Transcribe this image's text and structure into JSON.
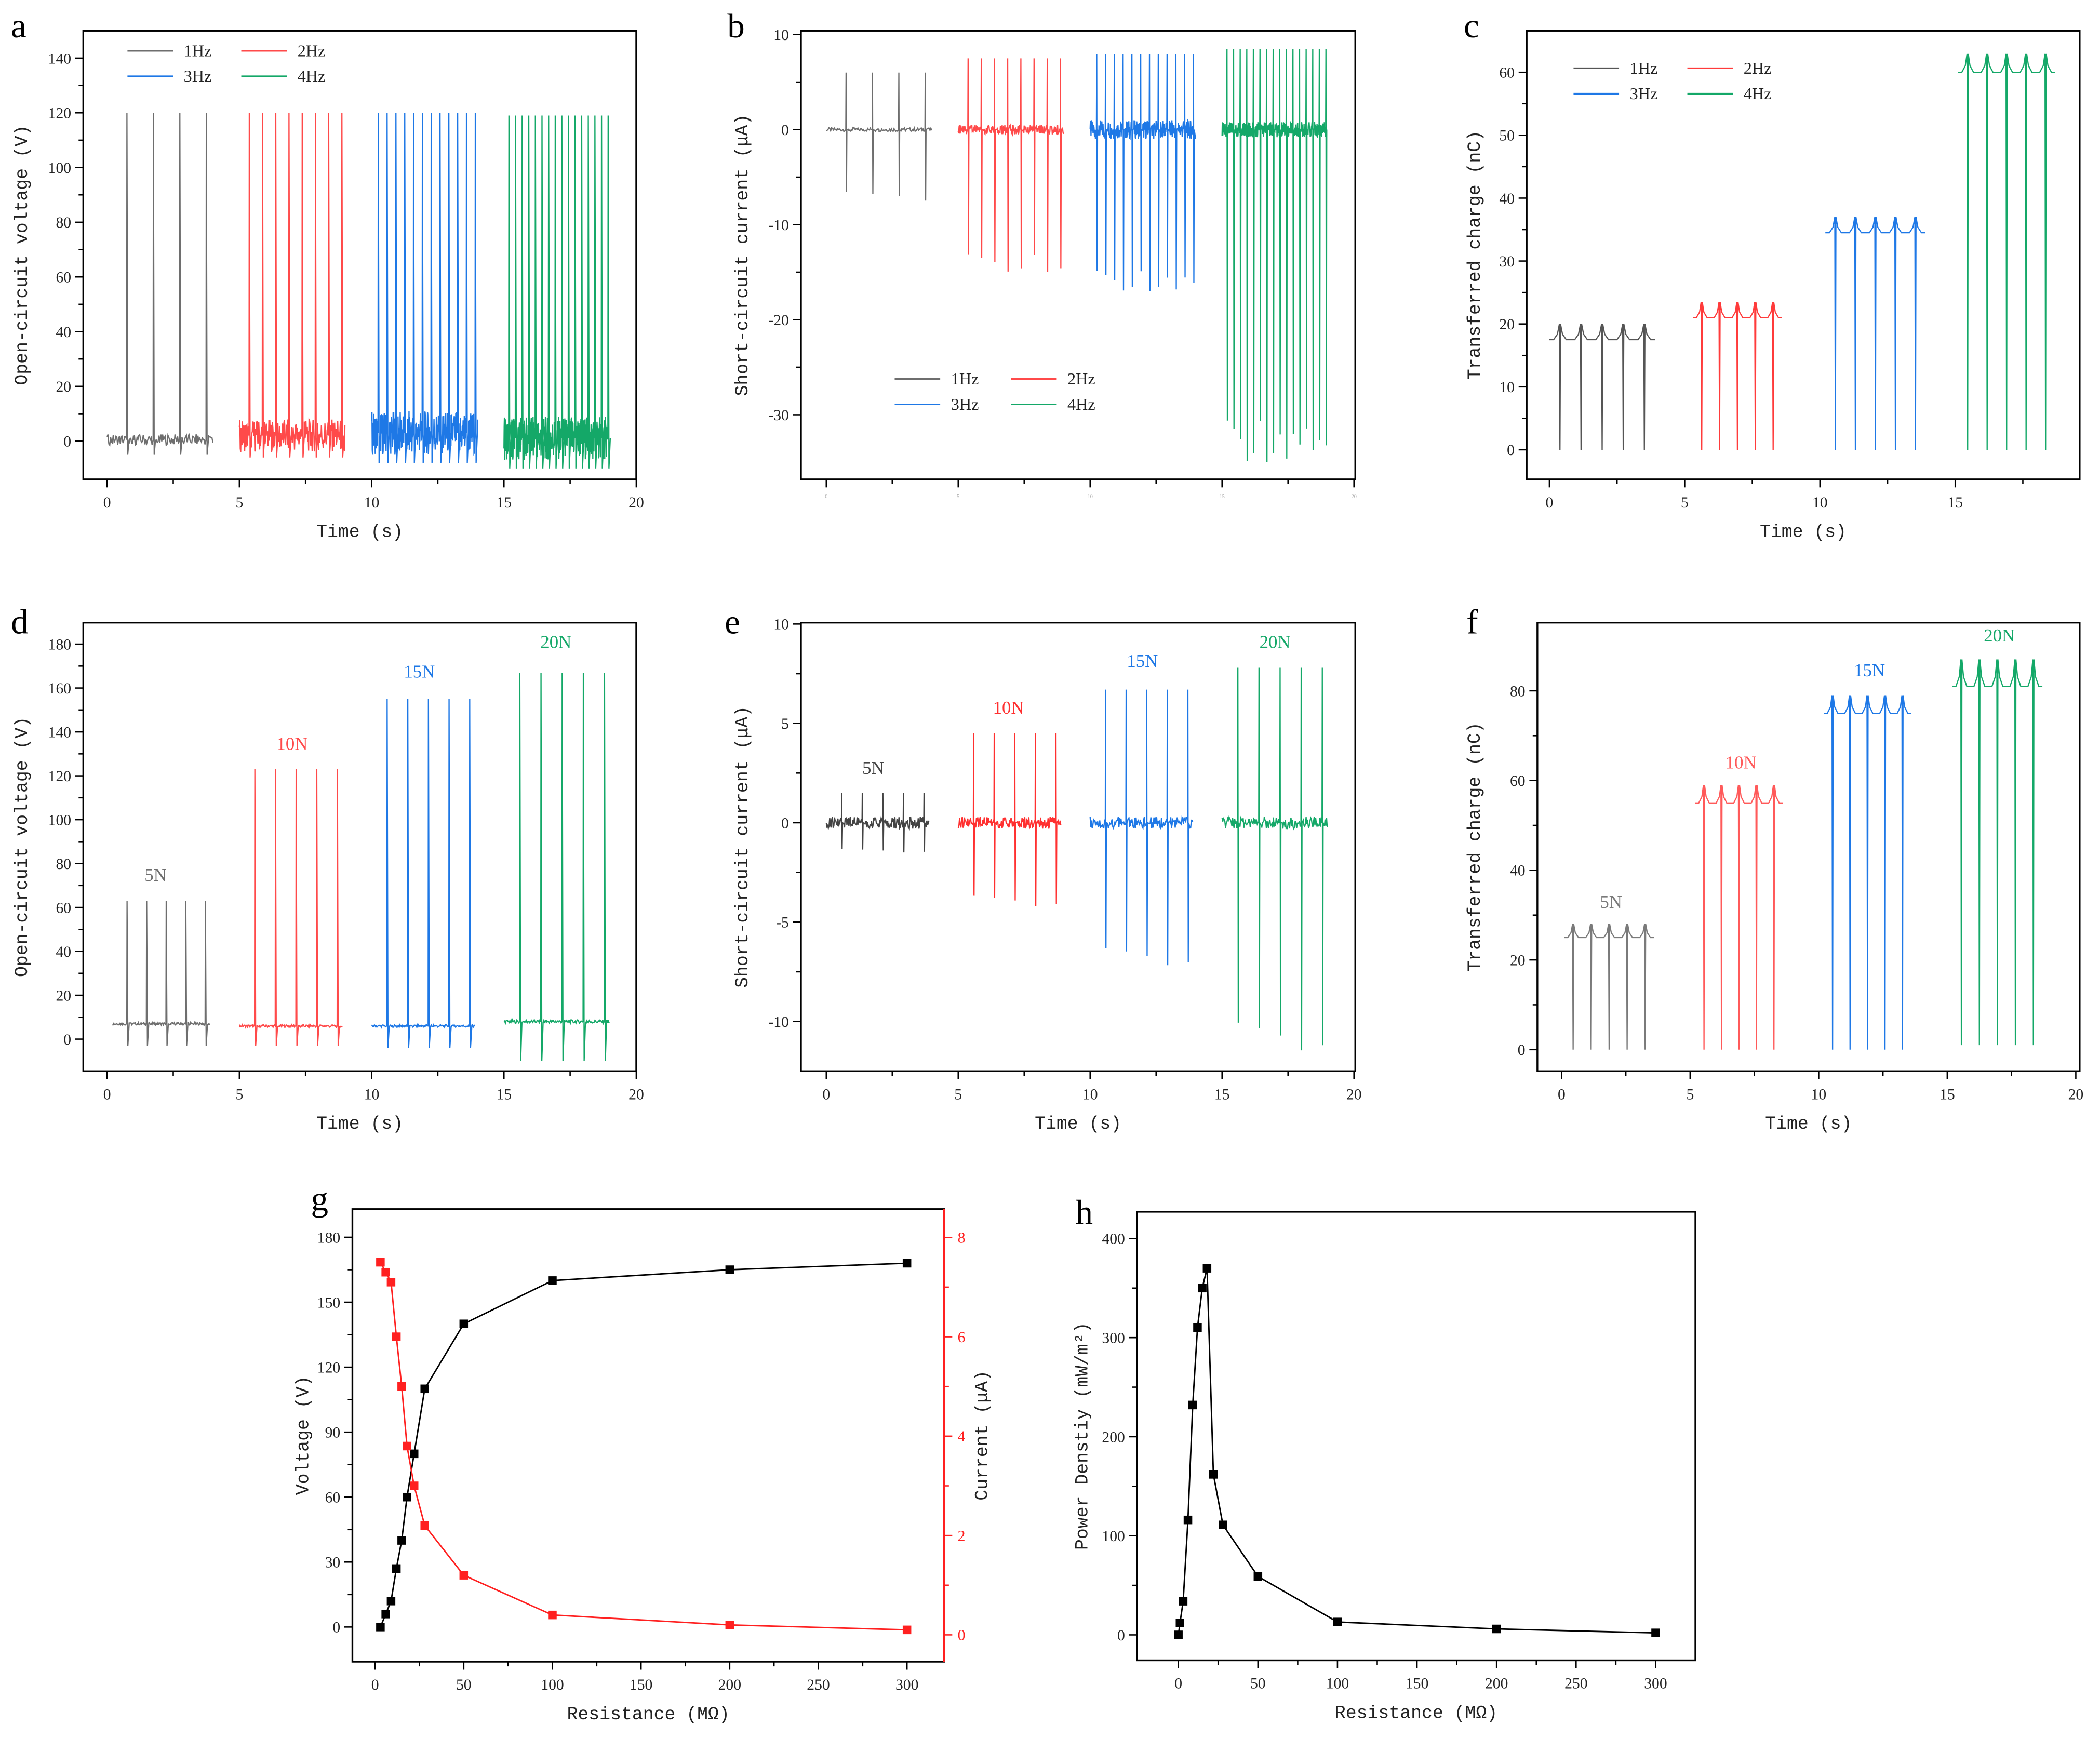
{
  "chart_data": [
    {
      "panel": "a",
      "type": "line",
      "signal": "voltage",
      "title": "",
      "xlabel": "Time (s)",
      "ylabel": "Open-circuit voltage (V)",
      "xticks": [
        "0",
        "5",
        "10",
        "15",
        "20"
      ],
      "xtick_values": [
        0,
        5,
        10,
        15,
        20
      ],
      "yticks": [
        "0",
        "20",
        "40",
        "60",
        "80",
        "100",
        "120",
        "140"
      ],
      "ytick_values": [
        0,
        20,
        40,
        60,
        80,
        100,
        120,
        140
      ],
      "xlim": [
        -0.9,
        20
      ],
      "ylim": [
        -14,
        150
      ],
      "legend": "top-left",
      "series": [
        {
          "name": "1Hz",
          "color": "#6e6e6e",
          "t_start": 0,
          "t_end": 4,
          "pulses": 4,
          "peak": 120,
          "trough": -5,
          "baseline": 0.5,
          "noise": 2
        },
        {
          "name": "2Hz",
          "color": "#ff4a4a",
          "t_start": 5,
          "t_end": 9,
          "pulses": 8,
          "peak": 120,
          "trough": -6,
          "baseline": 2,
          "noise": 6
        },
        {
          "name": "3Hz",
          "color": "#1e78e6",
          "t_start": 10,
          "t_end": 14,
          "pulses": 12,
          "peak": 120,
          "trough": -8,
          "baseline": 3,
          "noise": 8
        },
        {
          "name": "4Hz",
          "color": "#14a868",
          "t_start": 15,
          "t_end": 19,
          "pulses": 16,
          "peak": 119,
          "trough": -10,
          "baseline": 1,
          "noise": 8
        }
      ]
    },
    {
      "panel": "b",
      "type": "line",
      "signal": "current",
      "title": "",
      "xlabel": "",
      "ylabel": "Short-circuit current (μA)",
      "xticks": [
        "0",
        "5",
        "10",
        "15",
        "20"
      ],
      "xtick_values": [
        0,
        5,
        10,
        15,
        20
      ],
      "yticks": [
        "-30",
        "-20",
        "-10",
        "0",
        "10"
      ],
      "ytick_values": [
        -30,
        -20,
        -10,
        0,
        10
      ],
      "xlim": [
        -0.96,
        20.05
      ],
      "ylim": [
        -36.8,
        10.4
      ],
      "legend": "bottom-center",
      "series": [
        {
          "name": "1Hz",
          "color": "#6e6e6e",
          "t_start": 0,
          "t_end": 4,
          "pulses": 4,
          "peak": 6,
          "trough": -7.5,
          "baseline": 0,
          "noise": 0.2
        },
        {
          "name": "2Hz",
          "color": "#ff4a4a",
          "t_start": 5,
          "t_end": 9,
          "pulses": 8,
          "peak": 7.5,
          "trough": -15,
          "baseline": 0,
          "noise": 0.5
        },
        {
          "name": "3Hz",
          "color": "#1e78e6",
          "t_start": 10,
          "t_end": 14,
          "pulses": 12,
          "peak": 8,
          "trough": -17,
          "baseline": 0,
          "noise": 1
        },
        {
          "name": "4Hz",
          "color": "#14a868",
          "t_start": 15,
          "t_end": 19,
          "pulses": 16,
          "peak": 8.5,
          "trough": -35,
          "baseline": 0,
          "noise": 0.8
        }
      ]
    },
    {
      "panel": "c",
      "type": "line",
      "signal": "charge",
      "title": "",
      "xlabel": "Time (s)",
      "ylabel": "Transferred charge (nC)",
      "xticks": [
        "0",
        "5",
        "10",
        "15"
      ],
      "xtick_values": [
        0,
        5,
        10,
        15
      ],
      "yticks": [
        "0",
        "10",
        "20",
        "30",
        "40",
        "50",
        "60"
      ],
      "ytick_values": [
        0,
        10,
        20,
        30,
        40,
        50,
        60
      ],
      "xlim": [
        -0.84,
        19.6
      ],
      "ylim": [
        -4.7,
        66.6
      ],
      "legend": "top-left",
      "series": [
        {
          "name": "1Hz",
          "color": "#555555",
          "t_start": 0,
          "t_end": 3.9,
          "pulses": 5,
          "peak": 20,
          "trough": 0,
          "baseline": 17.5,
          "noise": 0
        },
        {
          "name": "2Hz",
          "color": "#ff3b3b",
          "t_start": 5.3,
          "t_end": 8.6,
          "pulses": 5,
          "peak": 23.5,
          "trough": 0,
          "baseline": 21,
          "noise": 0
        },
        {
          "name": "3Hz",
          "color": "#1e78e6",
          "t_start": 10.2,
          "t_end": 13.9,
          "pulses": 5,
          "peak": 37,
          "trough": 0,
          "baseline": 34.5,
          "noise": 0
        },
        {
          "name": "4Hz",
          "color": "#14a868",
          "t_start": 15.1,
          "t_end": 18.7,
          "pulses": 5,
          "peak": 63,
          "trough": 0,
          "baseline": 60,
          "noise": 0
        }
      ]
    },
    {
      "panel": "d",
      "type": "line",
      "signal": "voltage",
      "title": "",
      "xlabel": "Time (s)",
      "ylabel": "Open-circuit voltage (V)",
      "xticks": [
        "0",
        "5",
        "10",
        "15",
        "20"
      ],
      "xtick_values": [
        0,
        5,
        10,
        15,
        20
      ],
      "yticks": [
        "0",
        "20",
        "40",
        "60",
        "80",
        "100",
        "120",
        "140",
        "160",
        "180"
      ],
      "ytick_values": [
        0,
        20,
        40,
        60,
        80,
        100,
        120,
        140,
        160,
        180
      ],
      "xlim": [
        -0.9,
        20
      ],
      "ylim": [
        -14.6,
        189.8
      ],
      "legend": "labels",
      "series": [
        {
          "name": "5N",
          "color": "#6e6e6e",
          "t_start": 0.2,
          "t_end": 3.9,
          "pulses": 5,
          "peak": 63,
          "trough": -3,
          "baseline": 7,
          "noise": 0.6
        },
        {
          "name": "10N",
          "color": "#ff4a4a",
          "t_start": 5,
          "t_end": 8.9,
          "pulses": 5,
          "peak": 123,
          "trough": -3,
          "baseline": 6,
          "noise": 0.6
        },
        {
          "name": "15N",
          "color": "#1e78e6",
          "t_start": 10,
          "t_end": 13.9,
          "pulses": 5,
          "peak": 155,
          "trough": -4,
          "baseline": 6,
          "noise": 0.6
        },
        {
          "name": "20N",
          "color": "#14a868",
          "t_start": 15,
          "t_end": 19,
          "pulses": 5,
          "peak": 167,
          "trough": -10,
          "baseline": 8,
          "noise": 0.8
        }
      ]
    },
    {
      "panel": "e",
      "type": "line",
      "signal": "current",
      "title": "",
      "xlabel": "Time (s)",
      "ylabel": "Short-circuit current (μA)",
      "xticks": [
        "0",
        "5",
        "10",
        "15",
        "20"
      ],
      "xtick_values": [
        0,
        5,
        10,
        15,
        20
      ],
      "yticks": [
        "-10",
        "-5",
        "0",
        "5",
        "10"
      ],
      "ytick_values": [
        -10,
        -5,
        0,
        5,
        10
      ],
      "xlim": [
        -0.96,
        20.05
      ],
      "ylim": [
        -12.5,
        10.07
      ],
      "legend": "labels",
      "series": [
        {
          "name": "5N",
          "color": "#444444",
          "t_start": 0,
          "t_end": 3.9,
          "pulses": 5,
          "peak": 1.5,
          "trough": -1.5,
          "baseline": 0,
          "noise": 0.3
        },
        {
          "name": "10N",
          "color": "#ff3030",
          "t_start": 5,
          "t_end": 8.9,
          "pulses": 5,
          "peak": 4.5,
          "trough": -4.2,
          "baseline": 0,
          "noise": 0.3
        },
        {
          "name": "15N",
          "color": "#1e78e6",
          "t_start": 10,
          "t_end": 13.9,
          "pulses": 5,
          "peak": 6.7,
          "trough": -7.2,
          "baseline": 0,
          "noise": 0.3
        },
        {
          "name": "20N",
          "color": "#14a868",
          "t_start": 15,
          "t_end": 19,
          "pulses": 5,
          "peak": 7.8,
          "trough": -11.5,
          "baseline": 0,
          "noise": 0.3
        }
      ]
    },
    {
      "panel": "f",
      "type": "line",
      "signal": "charge",
      "title": "",
      "xlabel": "Time (s)",
      "ylabel": "Transferred charge (nC)",
      "xticks": [
        "0",
        "5",
        "10",
        "15",
        "20"
      ],
      "xtick_values": [
        0,
        5,
        10,
        15,
        20
      ],
      "yticks": [
        "0",
        "20",
        "40",
        "60",
        "80"
      ],
      "ytick_values": [
        0,
        20,
        40,
        60,
        80
      ],
      "xlim": [
        -0.94,
        20.15
      ],
      "ylim": [
        -4.8,
        95.2
      ],
      "legend": "labels",
      "series": [
        {
          "name": "5N",
          "color": "#7a7a7a",
          "t_start": 0.1,
          "t_end": 3.6,
          "pulses": 5,
          "peak": 28,
          "trough": 0,
          "baseline": 25,
          "noise": 0
        },
        {
          "name": "10N",
          "color": "#ff5a5a",
          "t_start": 5.2,
          "t_end": 8.6,
          "pulses": 5,
          "peak": 59,
          "trough": 0,
          "baseline": 55,
          "noise": 0
        },
        {
          "name": "15N",
          "color": "#1e78e6",
          "t_start": 10.2,
          "t_end": 13.6,
          "pulses": 5,
          "peak": 79,
          "trough": 0,
          "baseline": 75,
          "noise": 0
        },
        {
          "name": "20N",
          "color": "#14a868",
          "t_start": 15.2,
          "t_end": 18.7,
          "pulses": 5,
          "peak": 87,
          "trough": 1,
          "baseline": 81,
          "noise": 0
        }
      ]
    },
    {
      "panel": "g",
      "type": "line",
      "title": "",
      "xlabel": "Resistance (MΩ)",
      "ylabel": "Voltage (V)",
      "ylabel2": "Current (μA)",
      "xticks": [
        "0",
        "50",
        "100",
        "150",
        "200",
        "250",
        "300"
      ],
      "xtick_values": [
        0,
        50,
        100,
        150,
        200,
        250,
        300
      ],
      "yticks": [
        "0",
        "30",
        "60",
        "90",
        "120",
        "150",
        "180"
      ],
      "ytick_values": [
        0,
        30,
        60,
        90,
        120,
        150,
        180
      ],
      "yticks2": [
        "0",
        "2",
        "4",
        "6",
        "8"
      ],
      "ytick2_values": [
        0,
        2,
        4,
        6,
        8
      ],
      "xlim": [
        -12.8,
        321
      ],
      "ylim": [
        -16,
        193
      ],
      "ylim2": [
        -0.54,
        8.57
      ],
      "series": [
        {
          "name": "Voltage",
          "color": "#000000",
          "axis": "left",
          "x": [
            3,
            6,
            9,
            12,
            15,
            18,
            22,
            28,
            50,
            100,
            200,
            300
          ],
          "y": [
            0,
            6,
            12,
            27,
            40,
            60,
            80,
            110,
            140,
            160,
            165,
            168
          ]
        },
        {
          "name": "Current",
          "color": "#ff2020",
          "axis": "right",
          "x": [
            3,
            6,
            9,
            12,
            15,
            18,
            22,
            28,
            50,
            100,
            200,
            300
          ],
          "y": [
            7.5,
            7.3,
            7.1,
            6.0,
            5.0,
            3.8,
            3.0,
            2.2,
            1.2,
            0.4,
            0.2,
            0.1
          ]
        }
      ]
    },
    {
      "panel": "h",
      "type": "line",
      "title": "",
      "xlabel": "Resistance (MΩ)",
      "ylabel": "Power Denstiy (mW/m²)",
      "xticks": [
        "0",
        "50",
        "100",
        "150",
        "200",
        "250",
        "300"
      ],
      "xtick_values": [
        0,
        50,
        100,
        150,
        200,
        250,
        300
      ],
      "yticks": [
        "0",
        "100",
        "200",
        "300",
        "400"
      ],
      "ytick_values": [
        0,
        100,
        200,
        300,
        400
      ],
      "xlim": [
        -26,
        325
      ],
      "ylim": [
        -25.7,
        427
      ],
      "series": [
        {
          "name": "Power Density",
          "color": "#000000",
          "axis": "left",
          "x": [
            0,
            1,
            3,
            6,
            9,
            12,
            15,
            18,
            22,
            28,
            50,
            100,
            200,
            300
          ],
          "y": [
            0,
            12,
            34,
            116,
            232,
            310,
            350,
            370,
            162,
            111,
            59,
            13,
            6,
            2
          ]
        }
      ]
    }
  ]
}
